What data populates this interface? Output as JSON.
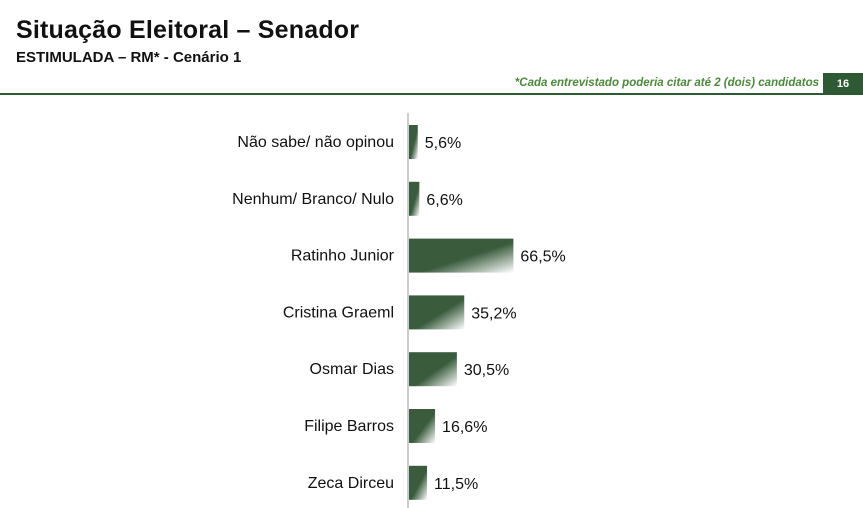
{
  "header": {
    "title": "Situação Eleitoral – Senador",
    "subtitle": "ESTIMULADA – RM* - Cenário 1",
    "note": "*Cada entrevistado poderia citar até 2 (dois) candidatos",
    "page_number": "16"
  },
  "colors": {
    "bar_dark": "#3a5c3d",
    "bar_light": "#ffffff",
    "accent": "#2e5a33",
    "note_text": "#4a8a3a"
  },
  "chart_data": {
    "type": "bar",
    "orientation": "horizontal",
    "categories": [
      "Não sabe/ não opinou",
      "Nenhum/ Branco/ Nulo",
      "Ratinho Junior",
      "Cristina Graeml",
      "Osmar Dias",
      "Filipe Barros",
      "Zeca Dirceu"
    ],
    "values": [
      5.6,
      6.6,
      66.5,
      35.2,
      30.5,
      16.6,
      11.5
    ],
    "value_labels": [
      "5,6%",
      "6,6%",
      "66,5%",
      "35,2%",
      "30,5%",
      "16,6%",
      "11,5%"
    ],
    "xlim": [
      0,
      100
    ],
    "grid": false,
    "legend": "none"
  }
}
